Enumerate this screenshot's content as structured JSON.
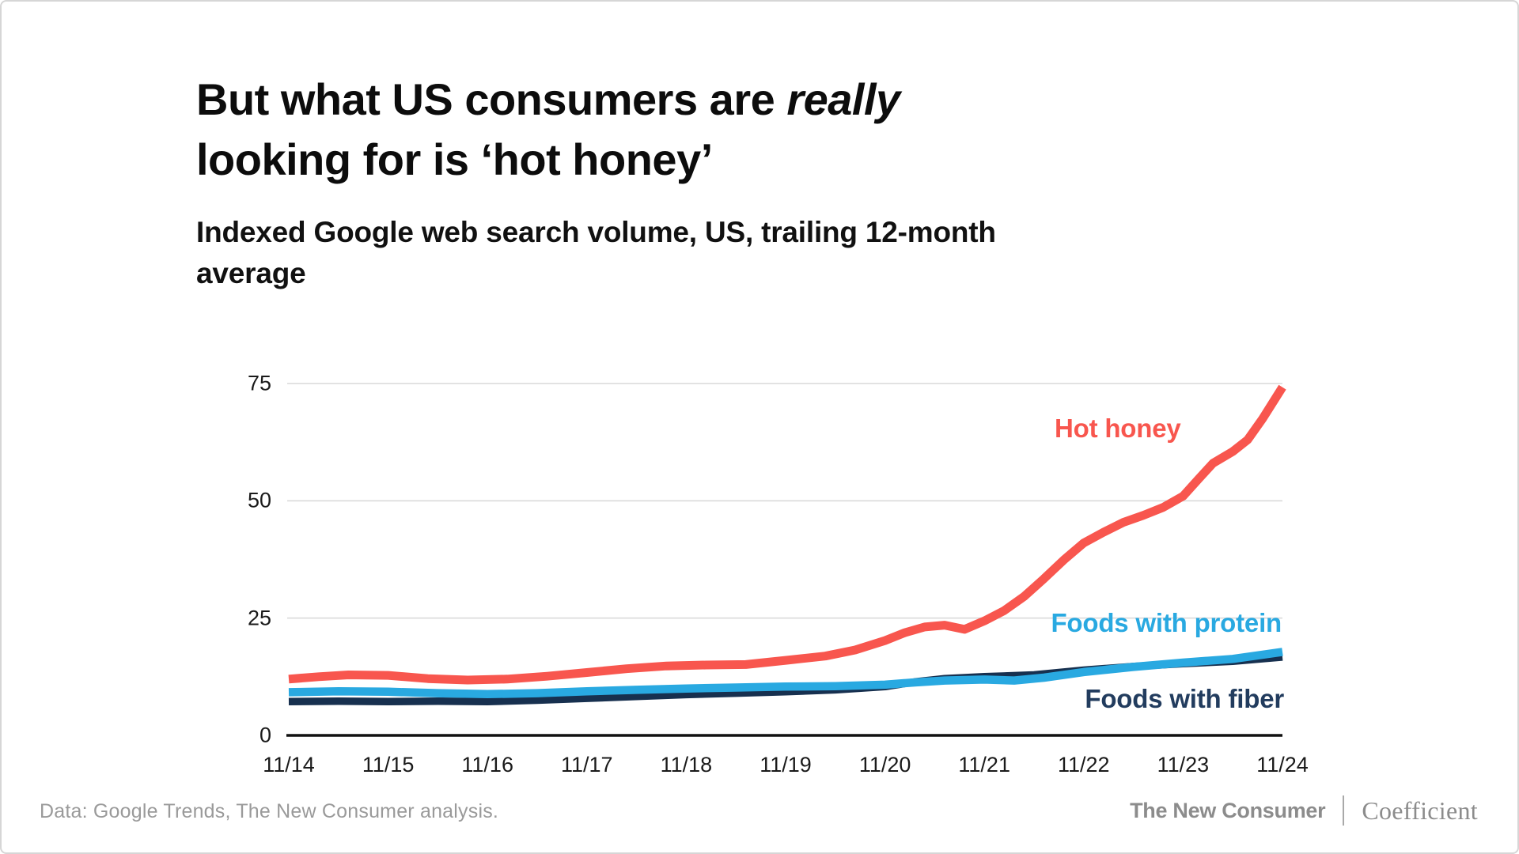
{
  "title": {
    "part1": "But what US consumers are ",
    "italic": "really",
    "part2": "looking for is ‘hot honey’"
  },
  "subtitle": "Indexed Google web search volume, US, trailing 12-month average",
  "footer": {
    "source": "Data: Google Trends, The New Consumer analysis.",
    "brand1": "The New Consumer",
    "brand2": "Coefficient"
  },
  "chart_data": {
    "type": "line",
    "title": "But what US consumers are really looking for is 'hot honey'",
    "subtitle": "Indexed Google web search volume, US, trailing 12-month average",
    "xlabel": "",
    "ylabel": "",
    "x_tick_labels": [
      "11/14",
      "11/15",
      "11/16",
      "11/17",
      "11/18",
      "11/19",
      "11/20",
      "11/21",
      "11/22",
      "11/23",
      "11/24"
    ],
    "x_unit": "years since Nov 2014, ticks every November",
    "yticks": [
      0,
      25,
      50,
      75
    ],
    "ylim": [
      0,
      76
    ],
    "grid": "horizontal",
    "gridline_color": "#d8d8d8",
    "axis_color": "#111111",
    "legend": "inline-labels-on-chart",
    "series": [
      {
        "name": "Hot honey",
        "color": "#F8564E",
        "stroke_width": 11,
        "points": [
          [
            0,
            12.0
          ],
          [
            0.3,
            12.5
          ],
          [
            0.6,
            12.9
          ],
          [
            1.0,
            12.8
          ],
          [
            1.4,
            12.1
          ],
          [
            1.8,
            11.8
          ],
          [
            2.2,
            12.0
          ],
          [
            2.6,
            12.6
          ],
          [
            3.0,
            13.4
          ],
          [
            3.4,
            14.2
          ],
          [
            3.8,
            14.8
          ],
          [
            4.2,
            15.0
          ],
          [
            4.6,
            15.1
          ],
          [
            5.0,
            16.0
          ],
          [
            5.4,
            16.9
          ],
          [
            5.7,
            18.2
          ],
          [
            6.0,
            20.2
          ],
          [
            6.2,
            21.9
          ],
          [
            6.4,
            23.1
          ],
          [
            6.6,
            23.5
          ],
          [
            6.8,
            22.6
          ],
          [
            7.0,
            24.4
          ],
          [
            7.2,
            26.6
          ],
          [
            7.4,
            29.6
          ],
          [
            7.6,
            33.4
          ],
          [
            7.8,
            37.4
          ],
          [
            8.0,
            41.0
          ],
          [
            8.2,
            43.3
          ],
          [
            8.4,
            45.4
          ],
          [
            8.6,
            46.9
          ],
          [
            8.8,
            48.6
          ],
          [
            9.0,
            51.0
          ],
          [
            9.15,
            54.5
          ],
          [
            9.3,
            58.0
          ],
          [
            9.5,
            60.5
          ],
          [
            9.65,
            63.0
          ],
          [
            9.8,
            67.5
          ],
          [
            10,
            74.2
          ]
        ]
      },
      {
        "name": "Foods with protein",
        "color": "#29A9E1",
        "stroke_width": 10.5,
        "points": [
          [
            0,
            9.2
          ],
          [
            0.5,
            9.4
          ],
          [
            1.0,
            9.3
          ],
          [
            1.5,
            9.0
          ],
          [
            2.0,
            8.8
          ],
          [
            2.5,
            9.0
          ],
          [
            3.0,
            9.4
          ],
          [
            3.5,
            9.7
          ],
          [
            4.0,
            10.0
          ],
          [
            4.5,
            10.2
          ],
          [
            5.0,
            10.4
          ],
          [
            5.5,
            10.5
          ],
          [
            6.0,
            10.8
          ],
          [
            6.3,
            11.3
          ],
          [
            6.6,
            11.7
          ],
          [
            7.0,
            11.9
          ],
          [
            7.3,
            11.7
          ],
          [
            7.6,
            12.3
          ],
          [
            8.0,
            13.5
          ],
          [
            8.5,
            14.6
          ],
          [
            9.0,
            15.5
          ],
          [
            9.5,
            16.3
          ],
          [
            10,
            17.8
          ]
        ]
      },
      {
        "name": "Foods with fiber",
        "color": "#17304F",
        "label_color": "#223C5E",
        "stroke_width": 9.5,
        "points": [
          [
            0,
            7.2
          ],
          [
            0.5,
            7.3
          ],
          [
            1.0,
            7.2
          ],
          [
            1.5,
            7.3
          ],
          [
            2.0,
            7.2
          ],
          [
            2.5,
            7.5
          ],
          [
            3.0,
            7.9
          ],
          [
            3.5,
            8.3
          ],
          [
            4.0,
            8.7
          ],
          [
            4.5,
            9.0
          ],
          [
            5.0,
            9.3
          ],
          [
            5.5,
            9.7
          ],
          [
            6.0,
            10.4
          ],
          [
            6.3,
            11.4
          ],
          [
            6.6,
            12.1
          ],
          [
            7.0,
            12.5
          ],
          [
            7.5,
            12.9
          ],
          [
            8.0,
            13.9
          ],
          [
            8.5,
            14.7
          ],
          [
            9.0,
            15.3
          ],
          [
            9.5,
            15.8
          ],
          [
            10,
            16.7
          ]
        ]
      }
    ]
  }
}
